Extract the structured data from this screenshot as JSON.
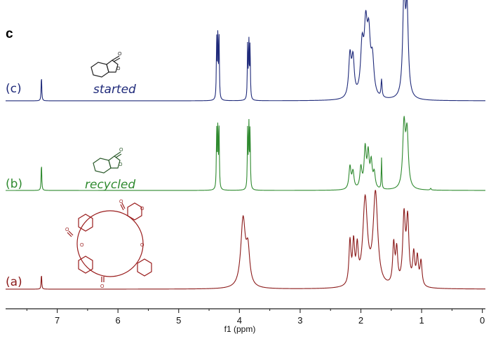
{
  "panel_letter": "c",
  "colors": {
    "trace_c": "#1f2a7a",
    "trace_b": "#2f8a2f",
    "trace_a": "#8b1a1a",
    "axis": "#222222"
  },
  "chart_data": {
    "type": "line",
    "title": "",
    "xlabel": "f1 (ppm)",
    "ylabel": "",
    "x_reversed": true,
    "xlim": [
      7.85,
      -0.05
    ],
    "x_ticks": [
      "7",
      "6",
      "5",
      "4",
      "3",
      "2",
      "1",
      "0"
    ],
    "x_tick_values": [
      7,
      6,
      5,
      4,
      3,
      2,
      1,
      0
    ],
    "grid": false,
    "series": [
      {
        "name": "(c)",
        "compound_label": "started",
        "color": "#1f2a7a",
        "peaks": [
          {
            "ppm": 7.26,
            "h": 0.29,
            "w": 0.006
          },
          {
            "ppm": 4.375,
            "h": 0.69,
            "w": 0.006
          },
          {
            "ppm": 4.355,
            "h": 0.77,
            "w": 0.006
          },
          {
            "ppm": 4.335,
            "h": 0.69,
            "w": 0.006
          },
          {
            "ppm": 3.865,
            "h": 0.63,
            "w": 0.006
          },
          {
            "ppm": 3.845,
            "h": 0.66,
            "w": 0.006
          },
          {
            "ppm": 3.825,
            "h": 0.63,
            "w": 0.006
          },
          {
            "ppm": 2.18,
            "h": 0.47,
            "w": 0.025
          },
          {
            "ppm": 2.13,
            "h": 0.42,
            "w": 0.025
          },
          {
            "ppm": 1.98,
            "h": 0.55,
            "w": 0.03
          },
          {
            "ppm": 1.92,
            "h": 0.72,
            "w": 0.03
          },
          {
            "ppm": 1.87,
            "h": 0.62,
            "w": 0.03
          },
          {
            "ppm": 1.81,
            "h": 0.4,
            "w": 0.03
          },
          {
            "ppm": 1.66,
            "h": 0.2,
            "w": 0.01
          },
          {
            "ppm": 1.29,
            "h": 1.15,
            "w": 0.025
          },
          {
            "ppm": 1.24,
            "h": 0.95,
            "w": 0.025
          }
        ]
      },
      {
        "name": "(b)",
        "compound_label": "recycled",
        "color": "#2f8a2f",
        "peaks": [
          {
            "ppm": 7.26,
            "h": 0.33,
            "w": 0.006
          },
          {
            "ppm": 4.375,
            "h": 0.7,
            "w": 0.006
          },
          {
            "ppm": 4.355,
            "h": 0.77,
            "w": 0.006
          },
          {
            "ppm": 4.335,
            "h": 0.7,
            "w": 0.006
          },
          {
            "ppm": 3.865,
            "h": 0.72,
            "w": 0.006
          },
          {
            "ppm": 3.845,
            "h": 0.77,
            "w": 0.006
          },
          {
            "ppm": 3.825,
            "h": 0.72,
            "w": 0.006
          },
          {
            "ppm": 2.18,
            "h": 0.27,
            "w": 0.02
          },
          {
            "ppm": 2.13,
            "h": 0.2,
            "w": 0.02
          },
          {
            "ppm": 2.0,
            "h": 0.25,
            "w": 0.02
          },
          {
            "ppm": 1.93,
            "h": 0.47,
            "w": 0.02
          },
          {
            "ppm": 1.88,
            "h": 0.4,
            "w": 0.02
          },
          {
            "ppm": 1.83,
            "h": 0.3,
            "w": 0.02
          },
          {
            "ppm": 1.78,
            "h": 0.18,
            "w": 0.02
          },
          {
            "ppm": 1.66,
            "h": 0.37,
            "w": 0.006
          },
          {
            "ppm": 1.29,
            "h": 0.75,
            "w": 0.025
          },
          {
            "ppm": 1.24,
            "h": 0.65,
            "w": 0.025
          },
          {
            "ppm": 0.85,
            "h": 0.02,
            "w": 0.01
          }
        ]
      },
      {
        "name": "(a)",
        "compound_label": "",
        "color": "#8b1a1a",
        "peaks": [
          {
            "ppm": 7.26,
            "h": 0.25,
            "w": 0.006
          },
          {
            "ppm": 3.94,
            "h": 1.1,
            "w": 0.045
          },
          {
            "ppm": 3.86,
            "h": 0.55,
            "w": 0.035
          },
          {
            "ppm": 2.18,
            "h": 0.7,
            "w": 0.02
          },
          {
            "ppm": 2.12,
            "h": 0.65,
            "w": 0.02
          },
          {
            "ppm": 2.06,
            "h": 0.55,
            "w": 0.02
          },
          {
            "ppm": 1.93,
            "h": 1.4,
            "w": 0.045
          },
          {
            "ppm": 1.76,
            "h": 1.5,
            "w": 0.045
          },
          {
            "ppm": 1.46,
            "h": 0.65,
            "w": 0.02
          },
          {
            "ppm": 1.41,
            "h": 0.55,
            "w": 0.02
          },
          {
            "ppm": 1.29,
            "h": 1.1,
            "w": 0.025
          },
          {
            "ppm": 1.23,
            "h": 1.05,
            "w": 0.025
          },
          {
            "ppm": 1.13,
            "h": 0.5,
            "w": 0.02
          },
          {
            "ppm": 1.07,
            "h": 0.45,
            "w": 0.02
          },
          {
            "ppm": 1.01,
            "h": 0.4,
            "w": 0.02
          }
        ]
      }
    ]
  }
}
